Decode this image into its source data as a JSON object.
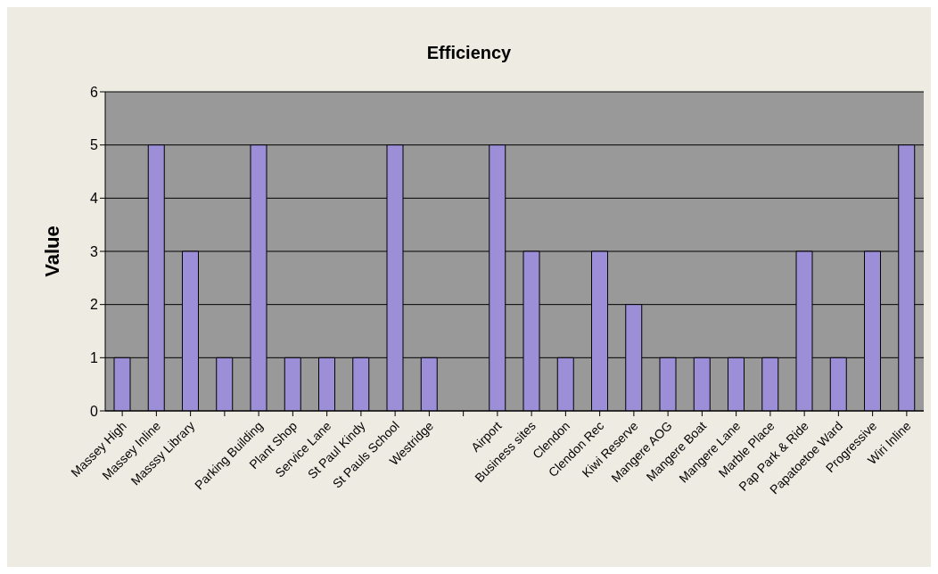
{
  "chart_data": {
    "type": "bar",
    "title": "Efficiency",
    "ylabel": "Value",
    "categories": [
      "Massey High",
      "Massey Inline",
      "Masssy Library",
      null,
      "Parking Building",
      "Plant Shop",
      "Service Lane",
      "St Paul Kindy",
      "St Pauls School",
      "Westridge",
      null,
      "Airport",
      "Business sites",
      "Clendon",
      "Clendon Rec",
      "Kiwi Reserve",
      "Mangere AOG",
      "Mangere Boat",
      "Mangere Lane",
      "Marble Place",
      "Pap Park & Ride",
      "Papatoetoe Ward",
      "Progressive",
      "Wiri Inline"
    ],
    "values": [
      1,
      5,
      3,
      1,
      5,
      1,
      1,
      1,
      5,
      1,
      null,
      5,
      3,
      1,
      3,
      2,
      1,
      1,
      1,
      1,
      3,
      1,
      3,
      5
    ],
    "color": "#9c8fd8",
    "ylim": [
      0,
      6
    ],
    "yticks": [
      0,
      1,
      2,
      3,
      4,
      5,
      6
    ],
    "grid": "y"
  }
}
